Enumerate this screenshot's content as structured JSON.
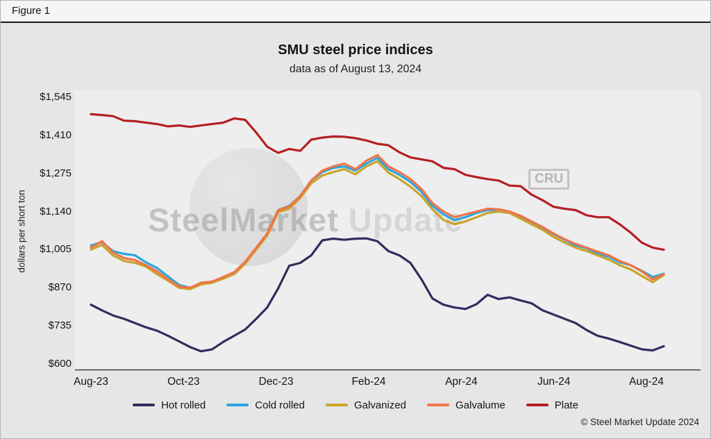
{
  "figure": {
    "label": "Figure 1"
  },
  "chart": {
    "title": "SMU steel price indices",
    "subtitle": "data as of August 13, 2024",
    "y_axis_title": "dollars per short ton",
    "copyright": "© Steel Market Update 2024"
  },
  "watermark": {
    "brand_bold": "SteelMarket",
    "brand_light": " Update",
    "cru": "CRU"
  },
  "chart_data": {
    "type": "line",
    "title": "SMU steel price indices",
    "subtitle": "data as of August 13, 2024",
    "ylabel": "dollars per short ton",
    "ylim": [
      600,
      1545
    ],
    "grid": false,
    "legend_position": "bottom",
    "x_ticks": [
      "Aug-23",
      "Oct-23",
      "Dec-23",
      "Feb-24",
      "Apr-24",
      "Jun-24",
      "Aug-24"
    ],
    "y_ticks": [
      600,
      735,
      870,
      1005,
      1140,
      1275,
      1410,
      1545
    ],
    "y_tick_labels": [
      "$600",
      "$735",
      "$870",
      "$1,005",
      "$1,140",
      "$1,275",
      "$1,410",
      "$1,545"
    ],
    "series": [
      {
        "name": "Hot rolled",
        "color": "#312d5e",
        "values": [
          810,
          790,
          772,
          760,
          745,
          730,
          718,
          700,
          680,
          660,
          645,
          652,
          678,
          700,
          722,
          760,
          800,
          868,
          948,
          958,
          985,
          1038,
          1044,
          1040,
          1044,
          1045,
          1035,
          1000,
          985,
          958,
          900,
          832,
          810,
          800,
          795,
          812,
          845,
          830,
          836,
          825,
          815,
          790,
          775,
          760,
          745,
          720,
          700,
          690,
          678,
          665,
          652,
          648,
          663
        ]
      },
      {
        "name": "Cold rolled",
        "color": "#2aa6df",
        "values": [
          1020,
          1032,
          1000,
          990,
          985,
          960,
          940,
          910,
          880,
          870,
          885,
          890,
          905,
          920,
          960,
          1010,
          1060,
          1145,
          1160,
          1195,
          1250,
          1280,
          1295,
          1300,
          1285,
          1310,
          1330,
          1290,
          1270,
          1245,
          1210,
          1160,
          1130,
          1110,
          1120,
          1135,
          1145,
          1145,
          1140,
          1120,
          1100,
          1080,
          1060,
          1040,
          1020,
          1010,
          990,
          980,
          960,
          950,
          930,
          908,
          920
        ]
      },
      {
        "name": "Galvanized",
        "color": "#c9a42c",
        "values": [
          1005,
          1022,
          985,
          965,
          958,
          945,
          918,
          895,
          870,
          865,
          882,
          888,
          902,
          918,
          955,
          1005,
          1055,
          1138,
          1150,
          1188,
          1240,
          1268,
          1280,
          1290,
          1272,
          1300,
          1318,
          1278,
          1255,
          1228,
          1195,
          1148,
          1110,
          1095,
          1105,
          1120,
          1135,
          1140,
          1135,
          1115,
          1095,
          1075,
          1050,
          1030,
          1012,
          1000,
          985,
          970,
          950,
          935,
          912,
          890,
          915
        ]
      },
      {
        "name": "Galvalume",
        "color": "#f0744a",
        "values": [
          1012,
          1035,
          995,
          975,
          968,
          950,
          928,
          900,
          875,
          870,
          888,
          892,
          908,
          925,
          962,
          1012,
          1062,
          1145,
          1158,
          1195,
          1250,
          1285,
          1300,
          1310,
          1290,
          1320,
          1340,
          1300,
          1280,
          1255,
          1220,
          1170,
          1140,
          1120,
          1130,
          1140,
          1150,
          1148,
          1140,
          1125,
          1105,
          1085,
          1062,
          1042,
          1025,
          1012,
          998,
          985,
          965,
          950,
          928,
          900,
          918
        ]
      },
      {
        "name": "Plate",
        "color": "#b41f23",
        "values": [
          1485,
          1482,
          1478,
          1462,
          1460,
          1455,
          1450,
          1442,
          1445,
          1440,
          1445,
          1450,
          1455,
          1470,
          1465,
          1420,
          1370,
          1348,
          1362,
          1355,
          1395,
          1402,
          1406,
          1405,
          1400,
          1392,
          1380,
          1375,
          1350,
          1332,
          1325,
          1318,
          1295,
          1290,
          1270,
          1262,
          1255,
          1250,
          1232,
          1230,
          1200,
          1180,
          1157,
          1150,
          1145,
          1127,
          1120,
          1120,
          1095,
          1065,
          1030,
          1012,
          1005
        ]
      }
    ]
  }
}
